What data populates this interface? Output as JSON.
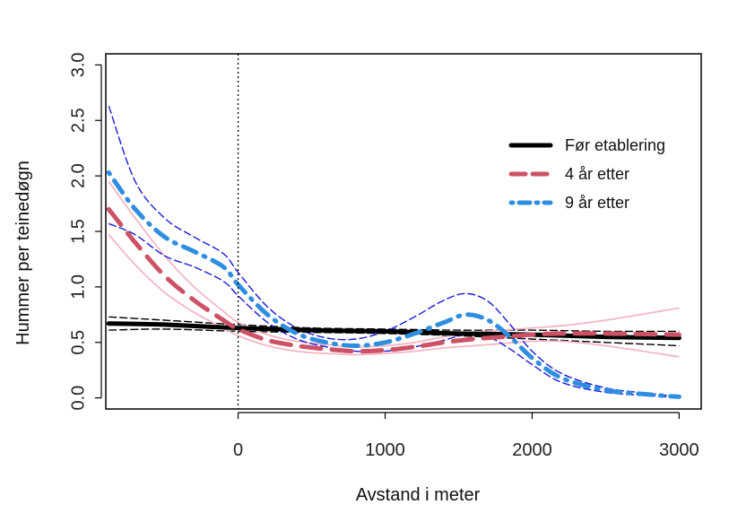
{
  "chart_data": {
    "type": "line",
    "title": "",
    "xlabel": "Avstand i meter",
    "ylabel": "Hummer per teinedøgn",
    "xlim": [
      -900,
      3150
    ],
    "ylim": [
      -0.1,
      3.1
    ],
    "x_ticks": [
      0,
      1000,
      2000,
      3000
    ],
    "x_tick_labels": [
      "0",
      "1000",
      "2000",
      "3000"
    ],
    "y_ticks": [
      0.0,
      0.5,
      1.0,
      1.5,
      2.0,
      2.5,
      3.0
    ],
    "y_tick_labels": [
      "0.0",
      "0.5",
      "1.0",
      "1.5",
      "2.0",
      "2.5",
      "3.0"
    ],
    "vline_x": 0,
    "legend_position": "top-right",
    "series": [
      {
        "name": "Før etablering",
        "color": "#000000",
        "style": "solid",
        "x": [
          -880,
          -500,
          0,
          500,
          1000,
          1500,
          2000,
          2500,
          3000
        ],
        "y": [
          0.67,
          0.66,
          0.63,
          0.61,
          0.6,
          0.58,
          0.57,
          0.55,
          0.54
        ],
        "ci_color": "#000000",
        "ci_upper": [
          0.73,
          0.7,
          0.66,
          0.63,
          0.62,
          0.61,
          0.61,
          0.6,
          0.6
        ],
        "ci_lower": [
          0.61,
          0.62,
          0.6,
          0.59,
          0.58,
          0.56,
          0.53,
          0.5,
          0.47
        ]
      },
      {
        "name": "4 år etter",
        "color": "#cd5266",
        "style": "dashed",
        "x": [
          -880,
          -700,
          -500,
          -300,
          -100,
          0,
          200,
          400,
          600,
          800,
          1000,
          1200,
          1400,
          1600,
          1800,
          2000,
          2200,
          2500,
          3000
        ],
        "y": [
          1.7,
          1.4,
          1.1,
          0.88,
          0.7,
          0.62,
          0.52,
          0.47,
          0.44,
          0.42,
          0.43,
          0.46,
          0.5,
          0.53,
          0.55,
          0.57,
          0.58,
          0.58,
          0.57
        ],
        "ci_color": "#f4b6c2",
        "ci_upper": [
          1.95,
          1.62,
          1.28,
          1.0,
          0.78,
          0.68,
          0.57,
          0.51,
          0.48,
          0.46,
          0.47,
          0.5,
          0.55,
          0.59,
          0.61,
          0.63,
          0.65,
          0.7,
          0.81
        ],
        "ci_lower": [
          1.47,
          1.2,
          0.95,
          0.77,
          0.63,
          0.56,
          0.47,
          0.42,
          0.4,
          0.39,
          0.4,
          0.42,
          0.45,
          0.47,
          0.49,
          0.51,
          0.51,
          0.47,
          0.37
        ]
      },
      {
        "name": "9 år etter",
        "color": "#2e8ee0",
        "style": "dotdash",
        "x": [
          -880,
          -700,
          -500,
          -300,
          -100,
          0,
          200,
          400,
          600,
          800,
          1000,
          1200,
          1400,
          1550,
          1700,
          1850,
          2000,
          2200,
          2500,
          2800,
          3000
        ],
        "y": [
          2.03,
          1.7,
          1.45,
          1.32,
          1.18,
          1.02,
          0.75,
          0.58,
          0.5,
          0.47,
          0.5,
          0.58,
          0.68,
          0.75,
          0.7,
          0.55,
          0.36,
          0.18,
          0.07,
          0.03,
          0.01
        ],
        "ci_color": "#1a1adb",
        "ci_upper": [
          2.63,
          1.95,
          1.62,
          1.45,
          1.3,
          1.13,
          0.82,
          0.63,
          0.54,
          0.53,
          0.6,
          0.73,
          0.88,
          0.94,
          0.87,
          0.66,
          0.42,
          0.22,
          0.09,
          0.04,
          0.01
        ],
        "ci_lower": [
          1.57,
          1.47,
          1.28,
          1.18,
          1.05,
          0.92,
          0.68,
          0.53,
          0.46,
          0.42,
          0.42,
          0.46,
          0.52,
          0.57,
          0.55,
          0.44,
          0.3,
          0.14,
          0.05,
          0.02,
          0.0
        ]
      }
    ]
  }
}
